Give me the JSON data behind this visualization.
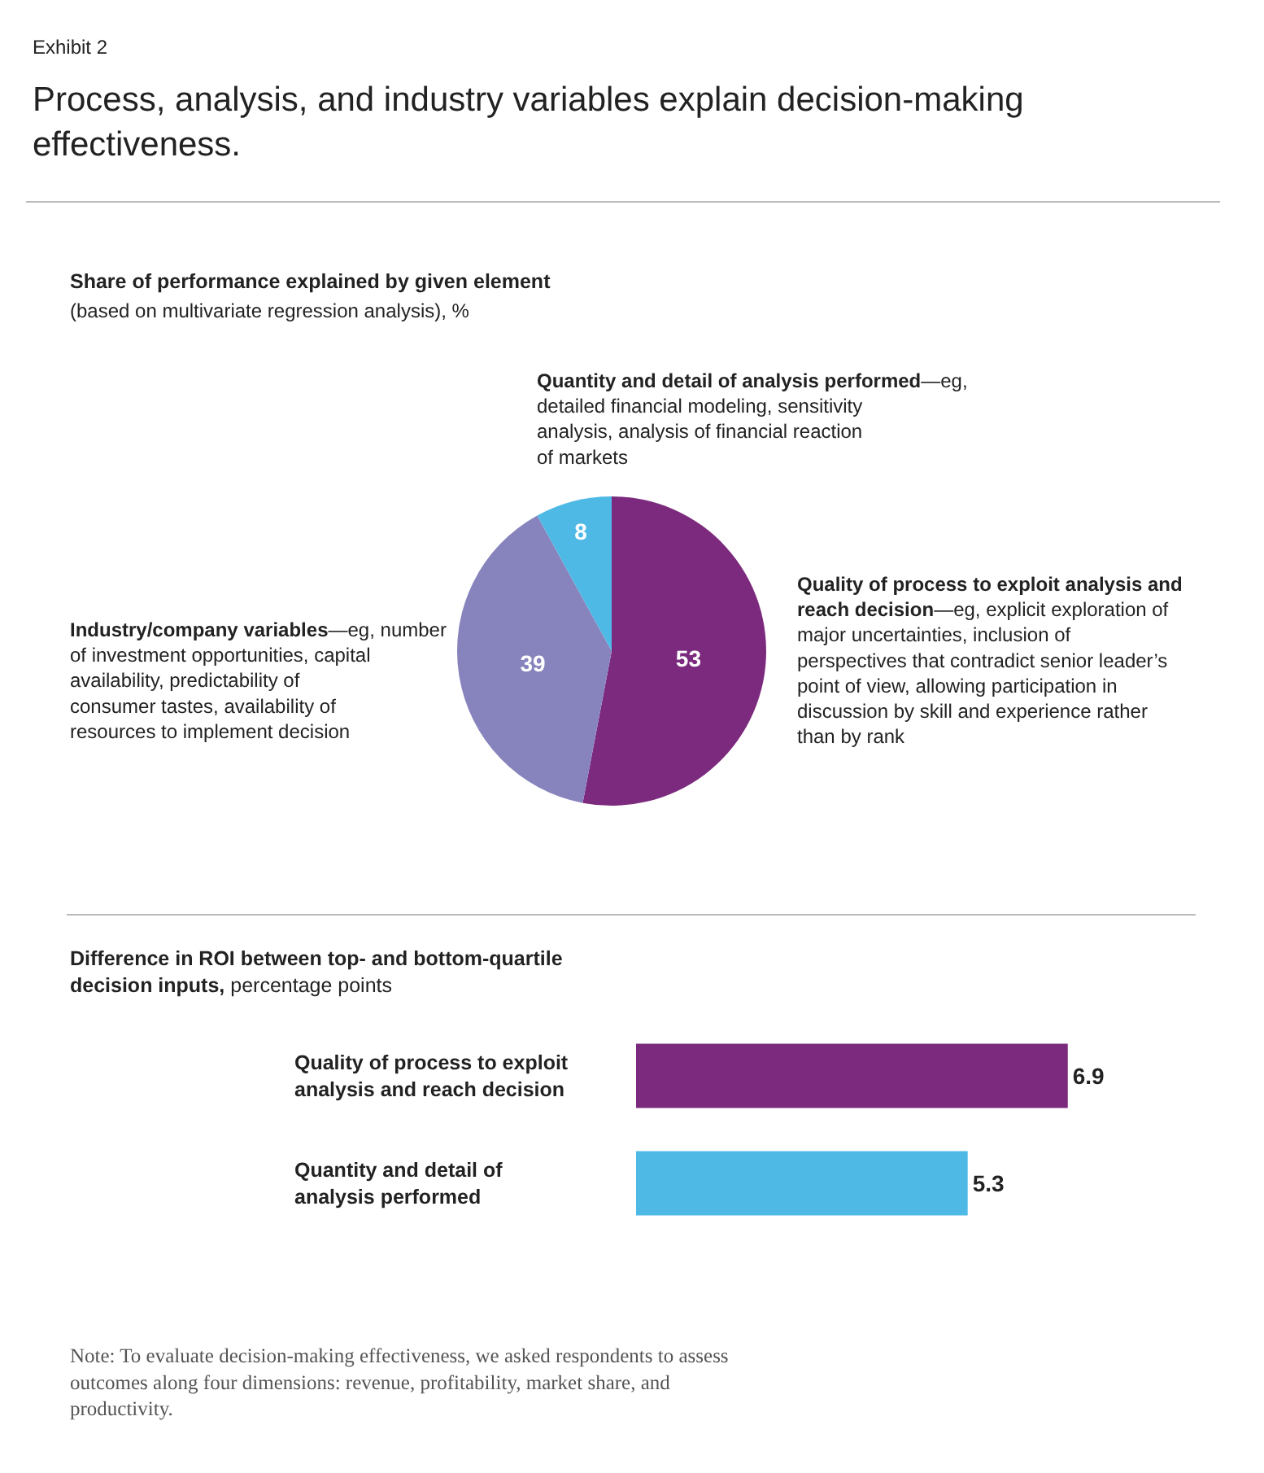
{
  "chart_data": [
    {
      "type": "pie",
      "title": "Process, analysis, and industry variables explain decision-making effectiveness.",
      "subtitle": "Share of performance explained by given element",
      "annotations": [
        "Exhibit 2",
        "(based on multivariate regression analysis), %"
      ],
      "categories": [
        "Quality of process to exploit analysis and reach decision—eg, explicit exploration of major uncertainties, inclusion of perspectives that contradict senior leader’s point of view, allowing participation in discussion by skill and experience rather than by rank",
        "Industry/company variables—eg, number of investment opportunities, capital availability, predictability of consumer tastes, availability of resources to implement decision",
        "Quantity and detail of analysis performed—eg, detailed financial modeling, sensitivity analysis, analysis of financial reaction of markets"
      ],
      "values": [
        53,
        39,
        8
      ],
      "colors": [
        "#7b2a7e",
        "#8784bd",
        "#4fb9e6"
      ],
      "data_labels": true
    },
    {
      "type": "bar",
      "orientation": "horizontal",
      "title": "Difference in ROI between top- and bottom-quartile decision inputs,",
      "subtitle": "percentage points",
      "categories": [
        "Quality of process to exploit analysis and reach decision",
        "Quantity and detail of analysis performed"
      ],
      "values": [
        6.9,
        5.3
      ],
      "colors": [
        "#7b2a7e",
        "#4fb9e6"
      ],
      "data_labels": true,
      "annotations": [
        "Note: To evaluate decision-making effectiveness, we asked respondents to assess outcomes along four dimensions: revenue, profitability, market share, and productivity."
      ]
    }
  ]
}
